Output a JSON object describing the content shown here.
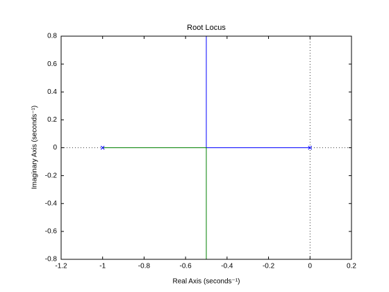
{
  "chart_data": {
    "type": "rootlocus",
    "title": "Root Locus",
    "xlabel": "Real Axis (seconds⁻¹)",
    "ylabel": "Imaginary Axis (seconds⁻¹)",
    "xlim": [
      -1.2,
      0.2
    ],
    "ylim": [
      -0.8,
      0.8
    ],
    "xticks": [
      -1.2,
      -1,
      -0.8,
      -0.6,
      -0.4,
      -0.2,
      0,
      0.2
    ],
    "yticks": [
      -0.8,
      -0.6,
      -0.4,
      -0.2,
      0,
      0.2,
      0.4,
      0.6,
      0.8
    ],
    "series": [
      {
        "color": "#0000ff",
        "x": [
          0,
          -0.5,
          -0.5
        ],
        "values": [
          0,
          0,
          0.8
        ]
      },
      {
        "color": "#008000",
        "x": [
          -1,
          -0.5,
          -0.5
        ],
        "values": [
          0,
          0,
          -0.8
        ]
      }
    ],
    "poles": {
      "color": "#0000ff",
      "x": [
        -1,
        0
      ],
      "values": [
        0,
        0
      ]
    }
  }
}
